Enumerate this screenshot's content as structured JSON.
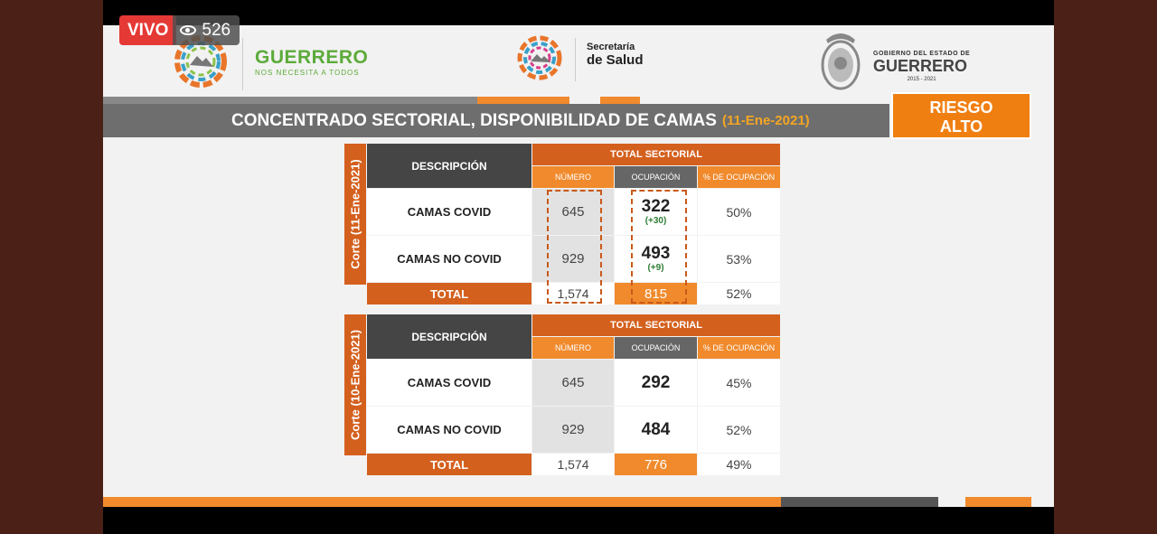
{
  "live": {
    "badge": "VIVO",
    "viewers": "526"
  },
  "header": {
    "brand_name": "GUERRERO",
    "brand_tagline": "NOS NECESITA A TODOS",
    "secretaria_line1": "Secretaría",
    "secretaria_line2": "de Salud",
    "gobierno_line1": "GOBIERNO DEL ESTADO DE",
    "gobierno_line2": "GUERRERO",
    "gobierno_years": "2015 - 2021"
  },
  "title": {
    "text": "CONCENTRADO SECTORIAL, DISPONIBILIDAD DE CAMAS",
    "date": "(11-Ene-2021)"
  },
  "risk": {
    "line1": "RIESGO",
    "line2": "ALTO"
  },
  "colors": {
    "orange": "#f08a2c",
    "dark_orange": "#d4601e",
    "gray": "#6e6e6e",
    "change_green": "#2e7d32"
  },
  "tables": [
    {
      "corte": "Corte (11-Ene-2021)",
      "desc_header": "DESCRIPCIÓN",
      "group_header": "TOTAL SECTORIAL",
      "col_numero": "NÚMERO",
      "col_ocupacion": "OCUPACIÓN",
      "col_pct": "% DE OCUPACIÓN",
      "rows": [
        {
          "label": "CAMAS COVID",
          "numero": "645",
          "ocupacion": "322",
          "change": "(+30)",
          "pct": "50%"
        },
        {
          "label": "CAMAS NO COVID",
          "numero": "929",
          "ocupacion": "493",
          "change": "(+9)",
          "pct": "53%"
        }
      ],
      "total": {
        "label": "TOTAL",
        "numero": "1,574",
        "ocupacion": "815",
        "pct": "52%"
      }
    },
    {
      "corte": "Corte (10-Ene-2021)",
      "desc_header": "DESCRIPCIÓN",
      "group_header": "TOTAL SECTORIAL",
      "col_numero": "NÚMERO",
      "col_ocupacion": "OCUPACIÓN",
      "col_pct": "% DE OCUPACIÓN",
      "rows": [
        {
          "label": "CAMAS COVID",
          "numero": "645",
          "ocupacion": "292",
          "pct": "45%"
        },
        {
          "label": "CAMAS NO COVID",
          "numero": "929",
          "ocupacion": "484",
          "pct": "52%"
        }
      ],
      "total": {
        "label": "TOTAL",
        "numero": "1,574",
        "ocupacion": "776",
        "pct": "49%"
      }
    }
  ]
}
